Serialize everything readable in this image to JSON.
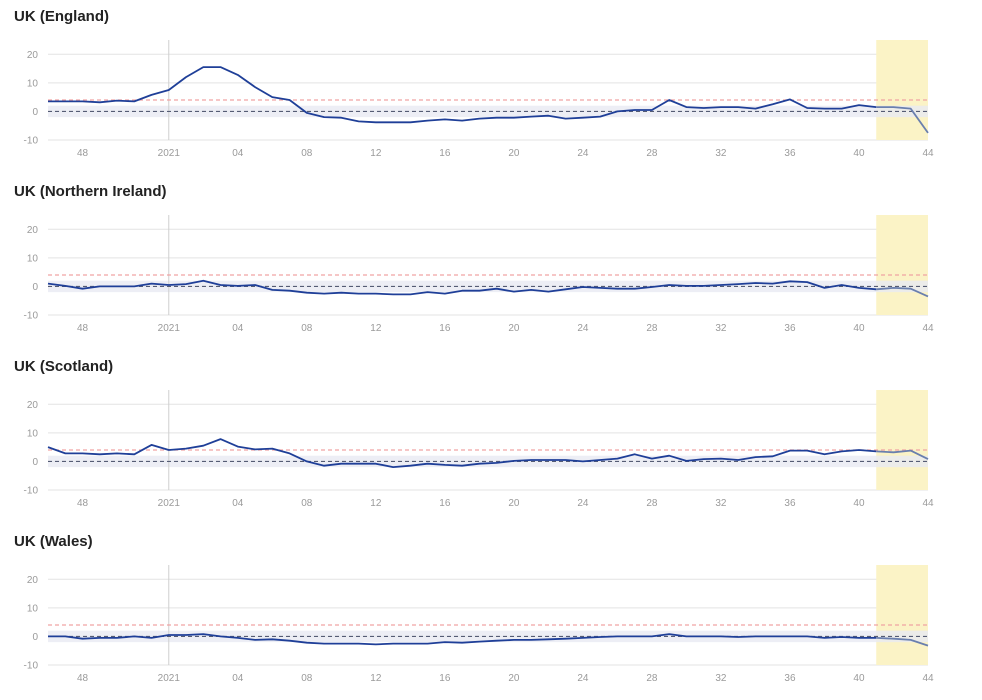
{
  "colors": {
    "series": "#1f3f98",
    "forecast_series": "#6a7fae",
    "upper_threshold": "#f0a3a3",
    "zero_line": "#555c74",
    "band": "#e8eaf2",
    "forecast_shade": "#fbf3c6",
    "grid": "#e3e3e3",
    "year_line": "#cfcfcf"
  },
  "chart_data": [
    {
      "type": "line",
      "title": "UK (England)",
      "x": [
        46,
        47,
        48,
        49,
        50,
        51,
        52,
        53,
        1,
        2,
        3,
        4,
        5,
        6,
        7,
        8,
        9,
        10,
        11,
        12,
        13,
        14,
        15,
        16,
        17,
        18,
        19,
        20,
        21,
        22,
        23,
        24,
        25,
        26,
        27,
        28,
        29,
        30,
        31,
        32,
        33,
        34,
        35,
        36,
        37,
        38,
        39,
        40,
        41,
        42,
        43,
        44
      ],
      "values": [
        3.5,
        3.5,
        3.5,
        3.2,
        3.8,
        3.5,
        5.8,
        7.5,
        12,
        15.5,
        15.5,
        12.8,
        8.5,
        5,
        4,
        -0.5,
        -2,
        -2.2,
        -3.5,
        -3.8,
        -3.8,
        -3.8,
        -3.2,
        -2.8,
        -3.2,
        -2.5,
        -2.2,
        -2.2,
        -1.8,
        -1.5,
        -2.5,
        -2.2,
        -1.8,
        0,
        0.5,
        0.5,
        4,
        1.5,
        1.2,
        1.5,
        1.5,
        1,
        2.5,
        4.2,
        1.2,
        1,
        1,
        2.2,
        1.5,
        1.5,
        1,
        -7.5
      ],
      "forecast_from_week": 41,
      "threshold_upper": 4,
      "threshold_lower": 0,
      "band": [
        -2,
        2
      ],
      "ylim": [
        -10,
        25
      ],
      "yticks": [
        "20",
        "10",
        "0",
        "-10"
      ],
      "ytick_values": [
        20,
        10,
        0,
        -10
      ],
      "xtick_labels": [
        "48",
        "2021",
        "04",
        "08",
        "12",
        "16",
        "20",
        "24",
        "28",
        "32",
        "36",
        "40",
        "44"
      ],
      "xtick_positions": [
        48,
        53,
        4,
        8,
        12,
        16,
        20,
        24,
        28,
        32,
        36,
        40,
        44
      ],
      "year_boundary_week": 53
    },
    {
      "type": "line",
      "title": "UK (Northern Ireland)",
      "x": [
        46,
        47,
        48,
        49,
        50,
        51,
        52,
        53,
        1,
        2,
        3,
        4,
        5,
        6,
        7,
        8,
        9,
        10,
        11,
        12,
        13,
        14,
        15,
        16,
        17,
        18,
        19,
        20,
        21,
        22,
        23,
        24,
        25,
        26,
        27,
        28,
        29,
        30,
        31,
        32,
        33,
        34,
        35,
        36,
        37,
        38,
        39,
        40,
        41,
        42,
        43,
        44
      ],
      "values": [
        1,
        0.2,
        -0.8,
        0,
        0,
        0,
        1,
        0.5,
        0.8,
        2,
        0.5,
        0.2,
        0.5,
        -1.2,
        -1.5,
        -2.2,
        -2.5,
        -2.2,
        -2.5,
        -2.5,
        -2.8,
        -2.8,
        -2,
        -2.5,
        -1.5,
        -1.5,
        -0.8,
        -1.8,
        -1.2,
        -1.8,
        -1,
        -0.2,
        -0.5,
        -0.8,
        -0.8,
        -0.2,
        0.5,
        0.2,
        0.2,
        0.5,
        0.8,
        1.2,
        1,
        1.8,
        1.5,
        -0.5,
        0.5,
        -0.5,
        -1,
        -0.5,
        -0.8,
        -3.5
      ],
      "forecast_from_week": 41,
      "threshold_upper": 4,
      "threshold_lower": 0,
      "band": [
        -2,
        2
      ],
      "ylim": [
        -10,
        25
      ],
      "yticks": [
        "20",
        "10",
        "0",
        "-10"
      ],
      "ytick_values": [
        20,
        10,
        0,
        -10
      ],
      "xtick_labels": [
        "48",
        "2021",
        "04",
        "08",
        "12",
        "16",
        "20",
        "24",
        "28",
        "32",
        "36",
        "40",
        "44"
      ],
      "xtick_positions": [
        48,
        53,
        4,
        8,
        12,
        16,
        20,
        24,
        28,
        32,
        36,
        40,
        44
      ],
      "year_boundary_week": 53
    },
    {
      "type": "line",
      "title": "UK (Scotland)",
      "x": [
        46,
        47,
        48,
        49,
        50,
        51,
        52,
        53,
        1,
        2,
        3,
        4,
        5,
        6,
        7,
        8,
        9,
        10,
        11,
        12,
        13,
        14,
        15,
        16,
        17,
        18,
        19,
        20,
        21,
        22,
        23,
        24,
        25,
        26,
        27,
        28,
        29,
        30,
        31,
        32,
        33,
        34,
        35,
        36,
        37,
        38,
        39,
        40,
        41,
        42,
        43,
        44
      ],
      "values": [
        5,
        2.8,
        2.8,
        2.5,
        2.8,
        2.5,
        5.8,
        4,
        4.5,
        5.5,
        7.8,
        5.2,
        4.2,
        4.5,
        2.8,
        0,
        -1.5,
        -0.8,
        -0.8,
        -0.8,
        -2,
        -1.5,
        -0.8,
        -1.2,
        -1.5,
        -0.8,
        -0.5,
        0.2,
        0.5,
        0.5,
        0.5,
        0,
        0.5,
        1,
        2.5,
        1,
        2,
        0.2,
        0.8,
        1,
        0.5,
        1.5,
        1.8,
        3.8,
        3.8,
        2.5,
        3.5,
        4,
        3.5,
        3.2,
        3.8,
        0.8
      ],
      "forecast_from_week": 41,
      "threshold_upper": 4,
      "threshold_lower": 0,
      "band": [
        -2,
        2
      ],
      "ylim": [
        -10,
        25
      ],
      "yticks": [
        "20",
        "10",
        "0",
        "-10"
      ],
      "ytick_values": [
        20,
        10,
        0,
        -10
      ],
      "xtick_labels": [
        "48",
        "2021",
        "04",
        "08",
        "12",
        "16",
        "20",
        "24",
        "28",
        "32",
        "36",
        "40",
        "44"
      ],
      "xtick_positions": [
        48,
        53,
        4,
        8,
        12,
        16,
        20,
        24,
        28,
        32,
        36,
        40,
        44
      ],
      "year_boundary_week": 53
    },
    {
      "type": "line",
      "title": "UK (Wales)",
      "x": [
        46,
        47,
        48,
        49,
        50,
        51,
        52,
        53,
        1,
        2,
        3,
        4,
        5,
        6,
        7,
        8,
        9,
        10,
        11,
        12,
        13,
        14,
        15,
        16,
        17,
        18,
        19,
        20,
        21,
        22,
        23,
        24,
        25,
        26,
        27,
        28,
        29,
        30,
        31,
        32,
        33,
        34,
        35,
        36,
        37,
        38,
        39,
        40,
        41,
        42,
        43,
        44
      ],
      "values": [
        0,
        0,
        -0.8,
        -0.5,
        -0.5,
        0,
        -0.5,
        0.5,
        0.5,
        0.8,
        0,
        -0.5,
        -1.2,
        -1,
        -1.5,
        -2.2,
        -2.5,
        -2.5,
        -2.5,
        -2.8,
        -2.5,
        -2.5,
        -2.5,
        -2,
        -2.2,
        -1.8,
        -1.5,
        -1.2,
        -1.2,
        -1,
        -0.8,
        -0.5,
        -0.2,
        0,
        0,
        0,
        0.8,
        0,
        0,
        0,
        -0.2,
        0,
        0,
        0,
        0,
        -0.5,
        -0.2,
        -0.5,
        -0.5,
        -0.8,
        -1.2,
        -3.2
      ],
      "forecast_from_week": 41,
      "threshold_upper": 4,
      "threshold_lower": 0,
      "band": [
        -2,
        2
      ],
      "ylim": [
        -10,
        25
      ],
      "yticks": [
        "20",
        "10",
        "0",
        "-10"
      ],
      "ytick_values": [
        20,
        10,
        0,
        -10
      ],
      "xtick_labels": [
        "48",
        "2021",
        "04",
        "08",
        "12",
        "16",
        "20",
        "24",
        "28",
        "32",
        "36",
        "40",
        "44"
      ],
      "xtick_positions": [
        48,
        53,
        4,
        8,
        12,
        16,
        20,
        24,
        28,
        32,
        36,
        40,
        44
      ],
      "year_boundary_week": 53
    }
  ]
}
